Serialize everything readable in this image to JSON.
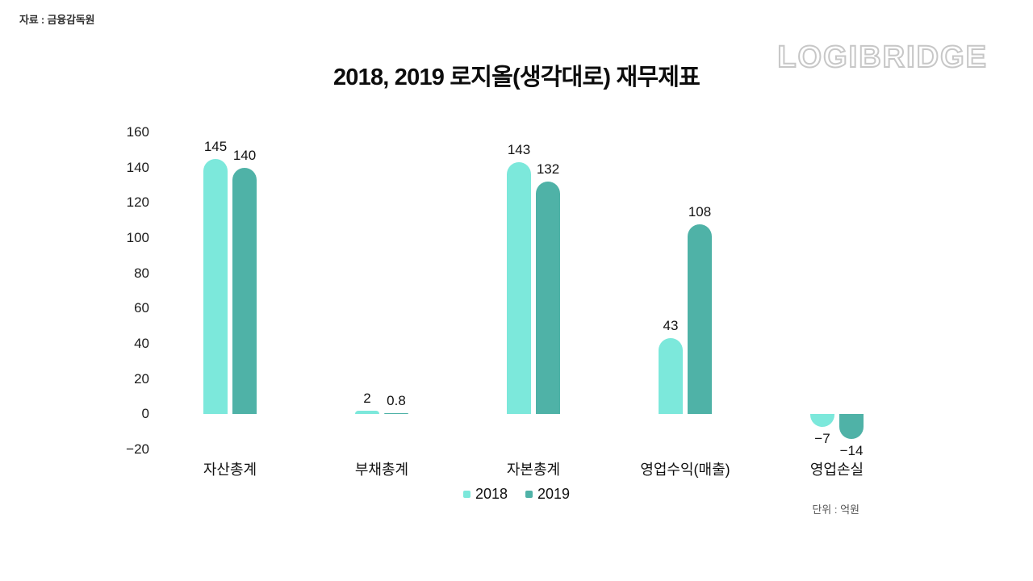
{
  "source_note": "자료 : 금융감독원",
  "title": "2018, 2019 로지올(생각대로) 재무제표",
  "logo": "LOGIBRIDGE",
  "unit_note": "단위 : 억원",
  "chart_data": {
    "type": "bar",
    "title": "2018, 2019 로지올(생각대로) 재무제표",
    "categories": [
      "자산총계",
      "부채총계",
      "자본총계",
      "영업수익(매출)",
      "영업손실"
    ],
    "series": [
      {
        "name": "2018",
        "color": "#7ce8db",
        "values": [
          145,
          2,
          143,
          43,
          -7
        ]
      },
      {
        "name": "2019",
        "color": "#4fb2a7",
        "values": [
          140,
          0.8,
          132,
          108,
          -14
        ]
      }
    ],
    "y_ticks": [
      160,
      140,
      120,
      100,
      80,
      60,
      40,
      20,
      0,
      -20
    ],
    "ylim": [
      -20,
      160
    ],
    "xlabel": "",
    "ylabel": "",
    "grid": false,
    "legend_position": "bottom",
    "value_labels": true,
    "unit": "억원"
  }
}
